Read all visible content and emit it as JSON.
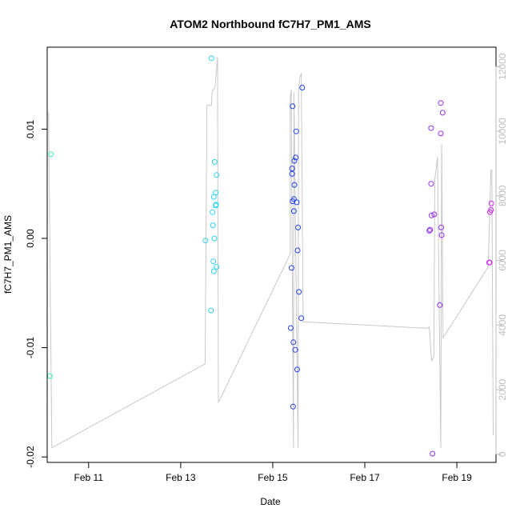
{
  "chart_data": {
    "type": "scatter",
    "title": "ATOM2 Northbound fC7H7_PM1_AMS",
    "xlabel": "Date",
    "ylabel": "fC7H7_PM1_AMS",
    "xlim": [
      10.1,
      19.85
    ],
    "ylim": [
      -0.0205,
      0.0175
    ],
    "y2lim": [
      -250,
      12600
    ],
    "x_ticks": [
      11,
      13,
      15,
      17,
      19
    ],
    "x_tick_labels": [
      "Feb 11",
      "Feb 13",
      "Feb 15",
      "Feb 17",
      "Feb 19"
    ],
    "y_ticks": [
      -0.02,
      -0.01,
      0.0,
      0.01
    ],
    "y_tick_labels": [
      "-0.02",
      "-0.01",
      "0.00",
      "0.01"
    ],
    "y2_ticks": [
      0,
      2000,
      4000,
      6000,
      8000,
      10000,
      12000
    ],
    "y2_tick_labels": [
      "0",
      "2000",
      "4000",
      "6000",
      "8000",
      "10000",
      "12000"
    ],
    "grid": false,
    "secondary_line_color": "#c8c8c8",
    "points": [
      {
        "x": 10.18,
        "y": 0.0077,
        "color": "#38f0c0"
      },
      {
        "x": 10.16,
        "y": -0.0126,
        "color": "#38f0c0"
      },
      {
        "x": 13.67,
        "y": 0.0165,
        "color": "#28d4f0"
      },
      {
        "x": 13.54,
        "y": -0.0002,
        "color": "#28d4f0"
      },
      {
        "x": 13.66,
        "y": -0.0066,
        "color": "#28d4f0"
      },
      {
        "x": 13.69,
        "y": 0.0024,
        "color": "#28d4f0"
      },
      {
        "x": 13.7,
        "y": 0.0012,
        "color": "#28d4f0"
      },
      {
        "x": 13.71,
        "y": -0.0021,
        "color": "#28d4f0"
      },
      {
        "x": 13.72,
        "y": -0.003,
        "color": "#28d4f0"
      },
      {
        "x": 13.72,
        "y": 0.0038,
        "color": "#28d4f0"
      },
      {
        "x": 13.73,
        "y": 0.0,
        "color": "#28d4f0"
      },
      {
        "x": 13.74,
        "y": 0.007,
        "color": "#28d4f0"
      },
      {
        "x": 13.76,
        "y": 0.0042,
        "color": "#28d4f0"
      },
      {
        "x": 13.76,
        "y": 0.003,
        "color": "#28d4f0"
      },
      {
        "x": 13.77,
        "y": 0.0031,
        "color": "#28d4f0"
      },
      {
        "x": 13.78,
        "y": 0.0058,
        "color": "#28d4f0"
      },
      {
        "x": 13.78,
        "y": -0.0026,
        "color": "#28d4f0"
      },
      {
        "x": 15.39,
        "y": -0.0082,
        "color": "#2440f0"
      },
      {
        "x": 15.41,
        "y": -0.0027,
        "color": "#2440f0"
      },
      {
        "x": 15.42,
        "y": 0.0064,
        "color": "#2440f0"
      },
      {
        "x": 15.43,
        "y": 0.0121,
        "color": "#2440f0"
      },
      {
        "x": 15.43,
        "y": 0.0034,
        "color": "#2440f0"
      },
      {
        "x": 15.42,
        "y": 0.0059,
        "color": "#2440f0"
      },
      {
        "x": 15.44,
        "y": -0.0154,
        "color": "#2440f0"
      },
      {
        "x": 15.45,
        "y": -0.0095,
        "color": "#2440f0"
      },
      {
        "x": 15.46,
        "y": 0.0025,
        "color": "#2440f0"
      },
      {
        "x": 15.46,
        "y": 0.0036,
        "color": "#2440f0"
      },
      {
        "x": 15.47,
        "y": 0.0049,
        "color": "#2440f0"
      },
      {
        "x": 15.47,
        "y": 0.0071,
        "color": "#2440f0"
      },
      {
        "x": 15.49,
        "y": -0.0102,
        "color": "#2440f0"
      },
      {
        "x": 15.5,
        "y": 0.0074,
        "color": "#2440f0"
      },
      {
        "x": 15.51,
        "y": 0.0098,
        "color": "#2440f0"
      },
      {
        "x": 15.52,
        "y": 0.0033,
        "color": "#2440f0"
      },
      {
        "x": 15.53,
        "y": -0.012,
        "color": "#2440f0"
      },
      {
        "x": 15.54,
        "y": -0.0011,
        "color": "#2440f0"
      },
      {
        "x": 15.55,
        "y": 0.001,
        "color": "#2440f0"
      },
      {
        "x": 15.57,
        "y": -0.0049,
        "color": "#2440f0"
      },
      {
        "x": 15.62,
        "y": -0.0073,
        "color": "#2440f0"
      },
      {
        "x": 15.64,
        "y": 0.0138,
        "color": "#2440f0"
      },
      {
        "x": 18.4,
        "y": 0.0007,
        "color": "#9030f0"
      },
      {
        "x": 18.42,
        "y": 0.0008,
        "color": "#9030f0"
      },
      {
        "x": 18.44,
        "y": 0.005,
        "color": "#9030f0"
      },
      {
        "x": 18.44,
        "y": 0.0101,
        "color": "#9030f0"
      },
      {
        "x": 18.45,
        "y": 0.0021,
        "color": "#9030f0"
      },
      {
        "x": 18.47,
        "y": -0.0197,
        "color": "#9030f0"
      },
      {
        "x": 18.51,
        "y": 0.0022,
        "color": "#9030f0"
      },
      {
        "x": 18.63,
        "y": -0.0061,
        "color": "#9030f0"
      },
      {
        "x": 18.65,
        "y": 0.0096,
        "color": "#9030f0"
      },
      {
        "x": 18.65,
        "y": 0.0124,
        "color": "#9030f0"
      },
      {
        "x": 18.66,
        "y": 0.001,
        "color": "#9030f0"
      },
      {
        "x": 18.67,
        "y": 0.0003,
        "color": "#9030f0"
      },
      {
        "x": 18.69,
        "y": 0.0115,
        "color": "#9030f0"
      },
      {
        "x": 19.7,
        "y": -0.0022,
        "color": "#d020f0"
      },
      {
        "x": 19.71,
        "y": -0.0022,
        "color": "#d020f0"
      },
      {
        "x": 19.72,
        "y": 0.0024,
        "color": "#d020f0"
      },
      {
        "x": 19.74,
        "y": 0.0026,
        "color": "#d020f0"
      },
      {
        "x": 19.75,
        "y": 0.0032,
        "color": "#d020f0"
      }
    ],
    "secondary_line": [
      [
        10.13,
        10600
      ],
      [
        10.2,
        200
      ],
      [
        13.53,
        2800
      ],
      [
        13.57,
        10800
      ],
      [
        13.67,
        10800
      ],
      [
        13.68,
        11200
      ],
      [
        13.75,
        11400
      ],
      [
        13.8,
        12300
      ],
      [
        13.82,
        1600
      ],
      [
        15.38,
        6200
      ],
      [
        15.38,
        11000
      ],
      [
        15.4,
        11300
      ],
      [
        15.45,
        200
      ],
      [
        15.46,
        11200
      ],
      [
        15.55,
        200
      ],
      [
        15.56,
        11200
      ],
      [
        15.58,
        11600
      ],
      [
        15.62,
        11800
      ],
      [
        15.66,
        4100
      ],
      [
        18.37,
        3900
      ],
      [
        18.4,
        3950
      ],
      [
        18.45,
        2900
      ],
      [
        18.5,
        3000
      ],
      [
        18.52,
        8500
      ],
      [
        18.58,
        9200
      ],
      [
        18.65,
        200
      ],
      [
        18.67,
        9600
      ],
      [
        18.7,
        3600
      ],
      [
        19.68,
        5800
      ],
      [
        19.74,
        8800
      ],
      [
        19.76,
        8800
      ],
      [
        19.79,
        600
      ]
    ]
  }
}
